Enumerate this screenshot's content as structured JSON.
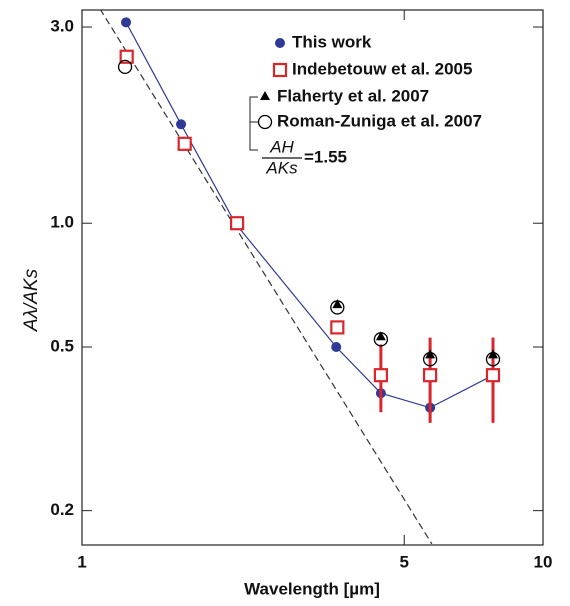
{
  "chart_data": {
    "type": "scatter",
    "xlabel": "Wavelength [µm]",
    "ylabel": "Aλ/AKs",
    "xscale": "log",
    "yscale": "log",
    "xlim": [
      1,
      10
    ],
    "ylim": [
      0.165,
      3.3
    ],
    "xticks": [
      1,
      5,
      10
    ],
    "yticks": [
      {
        "value": 0.2,
        "label": "0.2"
      },
      {
        "value": 0.5,
        "label": "0.5"
      },
      {
        "value": 1,
        "label": "1.0"
      },
      {
        "value": 3,
        "label": "3.0"
      }
    ],
    "legend": "upper right",
    "ratio_numerator": "AH",
    "ratio_denominator": "AKs",
    "ratio_value": "=1.55",
    "series": [
      {
        "name": "This work",
        "color": "#2e3a96",
        "marker": "circle-filled",
        "line": true,
        "x": [
          1.246,
          1.64,
          2.15,
          3.56,
          4.45,
          5.69,
          7.79
        ],
        "values": [
          3.08,
          1.74,
          1.0,
          0.5,
          0.386,
          0.356,
          0.427
        ]
      },
      {
        "name": "Indebetouw et al. 2005",
        "color": "#d8262b",
        "marker": "square-open",
        "x": [
          1.25,
          1.67,
          2.17,
          3.58,
          4.45,
          5.69,
          7.79
        ],
        "values": [
          2.54,
          1.56,
          1.0,
          0.558,
          0.427,
          0.427,
          0.427
        ],
        "errors": [
          null,
          null,
          null,
          null,
          0.08,
          0.1,
          0.1
        ]
      },
      {
        "name": "Flaherty et al. 2007",
        "color": "#000000",
        "marker": "triangle-filled",
        "x": [
          3.58,
          4.45,
          5.69,
          7.79
        ],
        "values": [
          0.632,
          0.528,
          0.477,
          0.477
        ]
      },
      {
        "name": "Roman-Zuniga et al. 2007",
        "color": "#000000",
        "marker": "circle-open",
        "x": [
          1.24,
          3.58,
          4.45,
          5.69,
          7.79
        ],
        "values": [
          2.4,
          0.624,
          0.522,
          0.467,
          0.467
        ]
      },
      {
        "color": "#333333",
        "marker": "none",
        "dashed": true,
        "x": [
          1.094,
          5.74
        ],
        "values": [
          3.32,
          0.166
        ]
      }
    ]
  }
}
